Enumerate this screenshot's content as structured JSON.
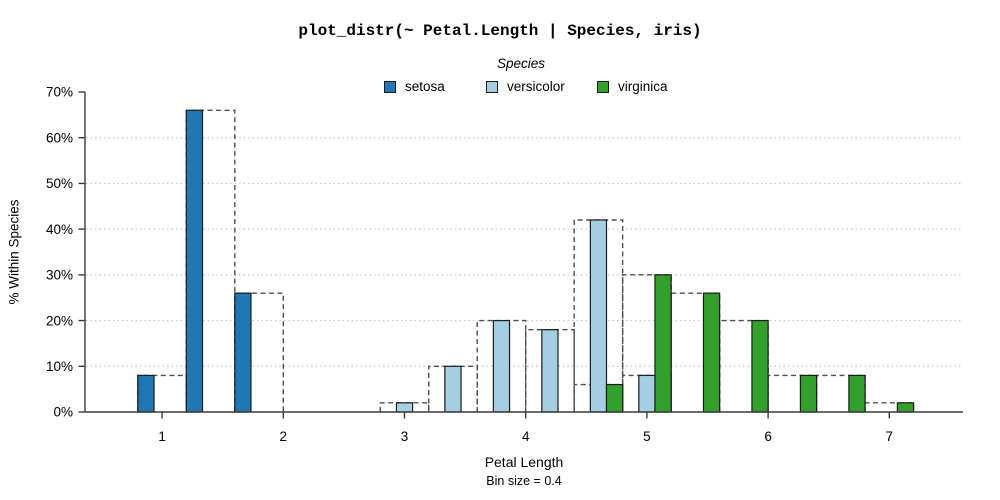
{
  "chart_data": {
    "type": "bar",
    "subtype": "grouped-histogram-with-dashed-bin-outlines",
    "title": "plot_distr(~ Petal.Length | Species, iris)",
    "legend_title": "Species",
    "legend_position": "top-center",
    "xlabel": "Petal Length",
    "xlabel_note": "Bin size = 0.4",
    "ylabel": "% Within Species",
    "bin_size": 0.4,
    "x_ticks": [
      1,
      2,
      3,
      4,
      5,
      6,
      7
    ],
    "y_ticks_percent": [
      0,
      10,
      20,
      30,
      40,
      50,
      60,
      70
    ],
    "grid_lines_percent": [
      10,
      20,
      30,
      40,
      50,
      60
    ],
    "grid_style": "dotted horizontal",
    "ylim": [
      0,
      70
    ],
    "xlim": [
      0.36,
      7.62
    ],
    "y_unit": "%",
    "series": [
      {
        "name": "setosa",
        "color": "#1f78b4",
        "slot": 0,
        "bins": [
          {
            "start": 0.8,
            "pct": 8
          },
          {
            "start": 1.2,
            "pct": 66
          },
          {
            "start": 1.6,
            "pct": 26
          }
        ]
      },
      {
        "name": "versicolor",
        "color": "#a6cee3",
        "slot": 1,
        "bins": [
          {
            "start": 2.8,
            "pct": 2
          },
          {
            "start": 3.2,
            "pct": 10
          },
          {
            "start": 3.6,
            "pct": 20
          },
          {
            "start": 4.0,
            "pct": 18
          },
          {
            "start": 4.4,
            "pct": 42
          },
          {
            "start": 4.8,
            "pct": 8
          }
        ]
      },
      {
        "name": "virginica",
        "color": "#33a02c",
        "slot": 2,
        "bins": [
          {
            "start": 4.4,
            "pct": 6
          },
          {
            "start": 4.8,
            "pct": 30
          },
          {
            "start": 5.2,
            "pct": 26
          },
          {
            "start": 5.6,
            "pct": 20
          },
          {
            "start": 6.0,
            "pct": 8
          },
          {
            "start": 6.4,
            "pct": 8
          },
          {
            "start": 6.8,
            "pct": 2
          }
        ]
      }
    ],
    "colors": {
      "bar_stroke": "#1b1b1b",
      "dashed_outline": "#4f4f4f",
      "gridline": "#c9c9c9",
      "axis": "#3a3a3a",
      "text": "#000000"
    }
  }
}
